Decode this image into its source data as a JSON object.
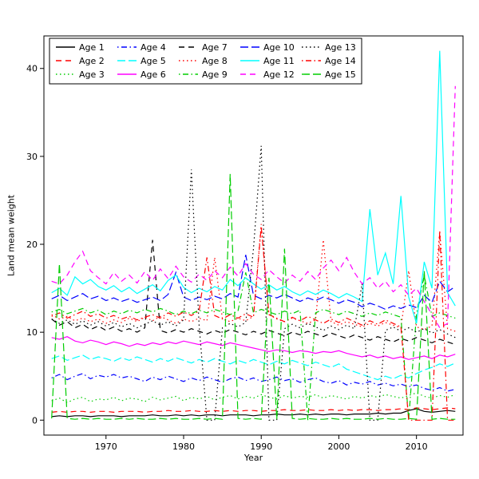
{
  "figure": {
    "background": "#ffffff"
  },
  "chart_data": {
    "type": "line",
    "title": "",
    "xlabel": "Year",
    "ylabel": "Land mean weight",
    "x_ticks": [
      1970,
      1980,
      1990,
      2000,
      2010
    ],
    "y_ticks": [
      0,
      10,
      20,
      30,
      40
    ],
    "xlim": [
      1962,
      2016
    ],
    "ylim": [
      -1.7,
      43.7
    ],
    "grid": false,
    "legend": {
      "position": "top-left",
      "ncol": 5,
      "border": true
    },
    "x": [
      1963,
      1964,
      1965,
      1966,
      1967,
      1968,
      1969,
      1970,
      1971,
      1972,
      1973,
      1974,
      1975,
      1976,
      1977,
      1978,
      1979,
      1980,
      1981,
      1982,
      1983,
      1984,
      1985,
      1986,
      1987,
      1988,
      1989,
      1990,
      1991,
      1992,
      1993,
      1994,
      1995,
      1996,
      1997,
      1998,
      1999,
      2000,
      2001,
      2002,
      2003,
      2004,
      2005,
      2006,
      2007,
      2008,
      2009,
      2010,
      2011,
      2012,
      2013,
      2014,
      2015
    ],
    "series": [
      {
        "name": "Age 1",
        "color": "#000000",
        "linetype": "solid",
        "values": [
          0.4,
          0.5,
          0.4,
          0.5,
          0.5,
          0.4,
          0.5,
          0.5,
          0.5,
          0.4,
          0.5,
          0.5,
          0.5,
          0.6,
          0.5,
          0.5,
          0.6,
          0.5,
          0.6,
          0.5,
          0.6,
          0.6,
          0.5,
          0.6,
          0.6,
          0.6,
          0.5,
          0.6,
          0.6,
          0.7,
          0.6,
          0.6,
          0.7,
          0.6,
          0.7,
          0.6,
          0.7,
          0.7,
          0.6,
          0.7,
          0.7,
          0.7,
          0.8,
          0.7,
          0.8,
          0.8,
          1.1,
          1.3,
          1.0,
          0.9,
          1.0,
          1.1,
          1.0
        ]
      },
      {
        "name": "Age 2",
        "color": "#ff0000",
        "linetype": "dashed",
        "values": [
          0.9,
          1.0,
          0.9,
          1.0,
          1.0,
          0.9,
          1.0,
          1.0,
          0.9,
          1.0,
          1.0,
          1.0,
          0.9,
          1.0,
          1.0,
          1.1,
          1.0,
          1.0,
          1.1,
          1.0,
          1.0,
          1.1,
          1.0,
          1.1,
          1.0,
          1.1,
          1.1,
          1.0,
          1.1,
          1.1,
          1.2,
          1.1,
          1.1,
          1.2,
          1.1,
          1.1,
          1.2,
          1.1,
          1.2,
          1.1,
          1.2,
          1.2,
          1.1,
          1.2,
          1.2,
          1.3,
          1.2,
          1.4,
          1.3,
          1.2,
          1.3,
          1.4,
          1.3
        ]
      },
      {
        "name": "Age 3",
        "color": "#00cd00",
        "linetype": "dotted",
        "values": [
          2.2,
          2.5,
          2.0,
          2.4,
          2.6,
          2.1,
          2.4,
          2.3,
          2.6,
          2.2,
          2.5,
          2.4,
          2.1,
          2.6,
          2.3,
          2.5,
          2.7,
          2.2,
          2.6,
          2.4,
          2.7,
          2.3,
          2.6,
          2.8,
          2.4,
          2.7,
          2.5,
          2.9,
          2.6,
          2.4,
          2.8,
          2.5,
          2.7,
          2.6,
          2.9,
          2.5,
          2.8,
          2.6,
          2.4,
          2.7,
          2.5,
          2.8,
          2.6,
          2.9,
          2.7,
          2.5,
          2.8,
          3.1,
          2.7,
          2.5,
          2.8,
          2.6,
          2.9
        ]
      },
      {
        "name": "Age 4",
        "color": "#0000ff",
        "linetype": "dotdash",
        "values": [
          4.8,
          5.2,
          4.6,
          5.0,
          5.3,
          4.7,
          5.1,
          4.9,
          5.2,
          4.8,
          5.0,
          4.7,
          4.4,
          4.9,
          4.6,
          5.0,
          4.7,
          4.4,
          4.8,
          4.5,
          4.9,
          4.6,
          4.3,
          4.7,
          4.9,
          4.5,
          4.8,
          4.4,
          4.6,
          4.9,
          4.5,
          4.7,
          4.3,
          4.6,
          4.8,
          4.4,
          4.2,
          4.5,
          4.0,
          4.3,
          4.1,
          4.4,
          4.0,
          4.2,
          3.9,
          4.1,
          3.8,
          4.0,
          3.6,
          3.4,
          3.7,
          3.3,
          3.5
        ]
      },
      {
        "name": "Age 5",
        "color": "#00ffff",
        "linetype": "longdash",
        "values": [
          7.0,
          7.3,
          6.8,
          7.1,
          7.4,
          6.9,
          7.2,
          7.0,
          6.7,
          7.1,
          6.8,
          7.2,
          6.9,
          6.6,
          7.0,
          6.7,
          7.1,
          6.8,
          6.5,
          6.9,
          6.6,
          7.0,
          6.7,
          6.4,
          6.8,
          6.5,
          6.9,
          6.6,
          6.3,
          6.7,
          6.4,
          6.8,
          6.5,
          6.2,
          6.6,
          6.3,
          6.0,
          6.4,
          5.8,
          5.5,
          5.2,
          4.9,
          4.6,
          5.0,
          4.7,
          5.1,
          4.8,
          5.3,
          5.7,
          6.0,
          6.4,
          6.1,
          6.5
        ]
      },
      {
        "name": "Age 6",
        "color": "#ff00ff",
        "linetype": "solid",
        "values": [
          9.4,
          9.2,
          9.5,
          9.0,
          8.8,
          9.1,
          8.9,
          8.6,
          8.9,
          8.7,
          8.4,
          8.7,
          8.5,
          8.8,
          8.6,
          8.9,
          8.7,
          9.0,
          8.8,
          8.6,
          8.9,
          8.7,
          8.5,
          8.8,
          8.6,
          8.4,
          8.2,
          8.0,
          7.8,
          8.0,
          7.9,
          7.7,
          7.9,
          7.8,
          7.6,
          7.8,
          7.7,
          7.9,
          7.6,
          7.4,
          7.2,
          7.4,
          7.1,
          7.3,
          7.0,
          7.2,
          6.9,
          7.1,
          7.3,
          7.0,
          7.4,
          7.2,
          7.5
        ]
      },
      {
        "name": "Age 7",
        "color": "#000000",
        "linetype": "dashed",
        "values": [
          11.5,
          10.8,
          11.2,
          10.5,
          10.9,
          10.3,
          10.7,
          10.2,
          10.6,
          10.1,
          10.4,
          10.0,
          10.5,
          20.5,
          10.2,
          9.9,
          10.3,
          10.0,
          10.4,
          10.1,
          9.8,
          10.2,
          9.9,
          10.3,
          10.0,
          9.7,
          10.1,
          9.8,
          10.2,
          9.9,
          9.6,
          10.0,
          9.7,
          10.1,
          9.8,
          9.5,
          9.9,
          9.6,
          9.3,
          9.7,
          9.4,
          9.1,
          9.5,
          9.2,
          8.9,
          9.3,
          9.0,
          9.4,
          9.1,
          8.8,
          9.2,
          8.9,
          8.6
        ]
      },
      {
        "name": "Age 8",
        "color": "#ff0000",
        "linetype": "dotted",
        "values": [
          12.0,
          11.5,
          11.8,
          11.3,
          11.6,
          11.2,
          11.5,
          11.0,
          11.4,
          11.1,
          11.6,
          11.2,
          11.7,
          11.3,
          11.8,
          11.4,
          11.0,
          11.5,
          11.2,
          11.6,
          11.3,
          18.5,
          11.5,
          11.2,
          11.6,
          11.3,
          11.8,
          22.3,
          12.0,
          11.5,
          11.2,
          11.6,
          11.3,
          11.0,
          11.4,
          20.5,
          11.2,
          10.8,
          11.2,
          10.9,
          10.6,
          11.0,
          10.7,
          11.1,
          10.8,
          10.5,
          17.0,
          10.6,
          10.3,
          10.7,
          21.5,
          10.4,
          10.1
        ]
      },
      {
        "name": "Age 9",
        "color": "#00cd00",
        "linetype": "dotdash",
        "values": [
          12.3,
          12.6,
          12.1,
          12.4,
          12.7,
          12.2,
          12.5,
          12.0,
          12.4,
          12.1,
          12.5,
          12.2,
          12.6,
          12.3,
          12.7,
          12.4,
          12.0,
          12.4,
          12.1,
          12.5,
          12.2,
          12.6,
          12.3,
          12.0,
          12.4,
          16.8,
          12.2,
          12.6,
          12.3,
          12.0,
          12.4,
          12.1,
          12.5,
          0.0,
          12.2,
          12.6,
          12.3,
          12.0,
          12.4,
          12.1,
          11.8,
          12.2,
          11.9,
          12.3,
          12.0,
          11.7,
          0.0,
          12.1,
          16.5,
          11.8,
          12.2,
          11.9,
          11.6
        ]
      },
      {
        "name": "Age 10",
        "color": "#0000ff",
        "linetype": "longdash",
        "values": [
          13.8,
          14.2,
          13.6,
          14.0,
          14.4,
          13.8,
          14.1,
          13.6,
          13.9,
          13.5,
          13.8,
          13.4,
          13.7,
          14.0,
          13.6,
          14.3,
          16.8,
          14.0,
          13.6,
          14.0,
          13.7,
          14.1,
          13.8,
          14.4,
          14.0,
          18.8,
          14.2,
          13.8,
          14.2,
          13.9,
          14.3,
          13.9,
          13.5,
          13.9,
          13.6,
          14.0,
          13.7,
          13.3,
          13.7,
          13.4,
          12.9,
          13.3,
          13.0,
          12.6,
          13.0,
          12.7,
          13.1,
          12.8,
          14.2,
          13.4,
          15.8,
          14.6,
          15.2
        ]
      },
      {
        "name": "Age 11",
        "color": "#00ffff",
        "linetype": "solid",
        "values": [
          14.5,
          15.0,
          14.2,
          16.3,
          15.5,
          16.0,
          15.2,
          14.8,
          15.3,
          14.6,
          15.1,
          14.4,
          14.9,
          15.4,
          14.7,
          15.9,
          16.5,
          15.1,
          14.5,
          15.0,
          14.6,
          15.2,
          14.8,
          16.0,
          15.3,
          16.2,
          15.5,
          14.9,
          15.4,
          14.8,
          15.2,
          14.6,
          14.2,
          14.7,
          14.3,
          14.8,
          14.4,
          13.9,
          14.4,
          14.0,
          13.5,
          24.0,
          16.5,
          19.0,
          15.5,
          25.5,
          14.0,
          11.0,
          18.0,
          15.0,
          42.0,
          14.5,
          13.0
        ]
      },
      {
        "name": "Age 12",
        "color": "#ff00ff",
        "linetype": "dashed",
        "values": [
          15.8,
          15.5,
          16.5,
          18.0,
          19.2,
          17.0,
          16.2,
          15.5,
          16.8,
          15.8,
          16.5,
          15.6,
          16.9,
          15.9,
          17.2,
          16.1,
          17.5,
          16.3,
          15.7,
          16.6,
          15.9,
          17.0,
          16.2,
          17.4,
          16.4,
          17.8,
          16.6,
          16.0,
          17.1,
          16.3,
          15.6,
          16.5,
          15.8,
          16.9,
          16.0,
          17.3,
          18.2,
          17.0,
          18.5,
          16.8,
          15.5,
          16.2,
          15.0,
          15.8,
          14.6,
          15.4,
          14.2,
          15.0,
          13.5,
          12.0,
          10.5,
          11.0,
          38.0
        ]
      },
      {
        "name": "Age 13",
        "color": "#000000",
        "linetype": "dotted",
        "values": [
          11.5,
          11.0,
          11.4,
          10.9,
          11.3,
          10.8,
          11.2,
          10.7,
          11.1,
          10.6,
          11.0,
          10.5,
          10.9,
          11.3,
          10.8,
          11.2,
          10.7,
          11.4,
          28.5,
          10.8,
          0.0,
          0.0,
          10.5,
          11.0,
          10.6,
          11.1,
          19.5,
          31.2,
          0.0,
          0.0,
          10.4,
          10.9,
          10.5,
          11.0,
          10.6,
          10.2,
          10.7,
          10.3,
          10.8,
          10.4,
          15.5,
          0.0,
          0.0,
          10.2,
          10.6,
          10.1,
          10.5,
          10.0,
          10.4,
          9.9,
          10.3,
          9.8,
          9.4
        ]
      },
      {
        "name": "Age 14",
        "color": "#ff0000",
        "linetype": "dotdash",
        "values": [
          11.8,
          12.2,
          11.6,
          12.0,
          12.4,
          11.8,
          12.1,
          11.6,
          11.9,
          11.5,
          11.8,
          11.4,
          11.7,
          12.0,
          11.6,
          12.2,
          11.8,
          12.3,
          11.9,
          12.4,
          18.5,
          11.9,
          11.5,
          12.0,
          11.6,
          12.1,
          11.7,
          22.0,
          12.0,
          11.6,
          11.2,
          11.7,
          11.3,
          11.8,
          11.4,
          11.0,
          11.5,
          11.1,
          11.6,
          11.2,
          10.8,
          11.3,
          10.9,
          11.4,
          11.0,
          10.6,
          0.0,
          0.0,
          0.0,
          0.0,
          21.5,
          0.0,
          0.0
        ]
      },
      {
        "name": "Age 15",
        "color": "#00cd00",
        "linetype": "longdash",
        "values": [
          0.2,
          17.8,
          0.2,
          0.1,
          0.2,
          0.1,
          0.2,
          0.1,
          0.1,
          0.2,
          0.1,
          0.2,
          0.1,
          0.1,
          0.2,
          0.1,
          0.2,
          0.1,
          0.1,
          0.2,
          0.1,
          0.2,
          0.1,
          28.0,
          0.2,
          0.1,
          0.2,
          0.1,
          16.2,
          0.1,
          19.5,
          0.2,
          0.1,
          0.2,
          0.1,
          0.1,
          0.2,
          0.1,
          0.2,
          0.1,
          0.1,
          0.2,
          0.1,
          0.2,
          0.1,
          0.1,
          0.2,
          0.1,
          17.0,
          0.1,
          0.2,
          0.1,
          0.1
        ]
      }
    ]
  }
}
